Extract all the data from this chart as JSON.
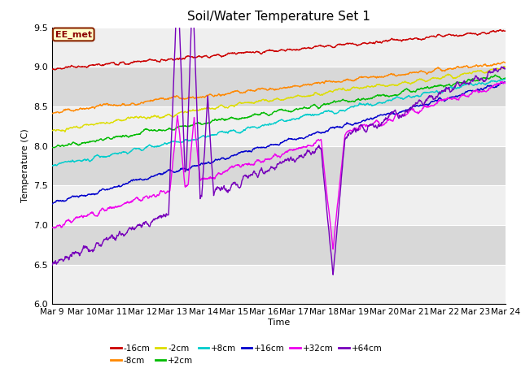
{
  "title": "Soil/Water Temperature Set 1",
  "xlabel": "Time",
  "ylabel": "Temperature (C)",
  "ylim": [
    6.0,
    9.5
  ],
  "yticks": [
    6.0,
    6.5,
    7.0,
    7.5,
    8.0,
    8.5,
    9.0,
    9.5
  ],
  "x_labels": [
    "Mar 9",
    "Mar 10",
    "Mar 11",
    "Mar 12",
    "Mar 13",
    "Mar 14",
    "Mar 15",
    "Mar 16",
    "Mar 17",
    "Mar 18",
    "Mar 19",
    "Mar 20",
    "Mar 21",
    "Mar 22",
    "Mar 23",
    "Mar 24"
  ],
  "bg_color": "#d8d8d8",
  "plot_bg_color": "#d8d8d8",
  "white_band_color": "#efefef",
  "annotation_text": "EE_met",
  "annotation_bg": "#ffffcc",
  "annotation_border": "#8b2500",
  "series": [
    {
      "label": "-16cm",
      "color": "#cc0000"
    },
    {
      "label": "-8cm",
      "color": "#ff8800"
    },
    {
      "label": "-2cm",
      "color": "#dddd00"
    },
    {
      "label": "+2cm",
      "color": "#00bb00"
    },
    {
      "label": "+8cm",
      "color": "#00cccc"
    },
    {
      "label": "+16cm",
      "color": "#0000cc"
    },
    {
      "label": "+32cm",
      "color": "#ee00ee"
    },
    {
      "label": "+64cm",
      "color": "#7700bb"
    }
  ]
}
